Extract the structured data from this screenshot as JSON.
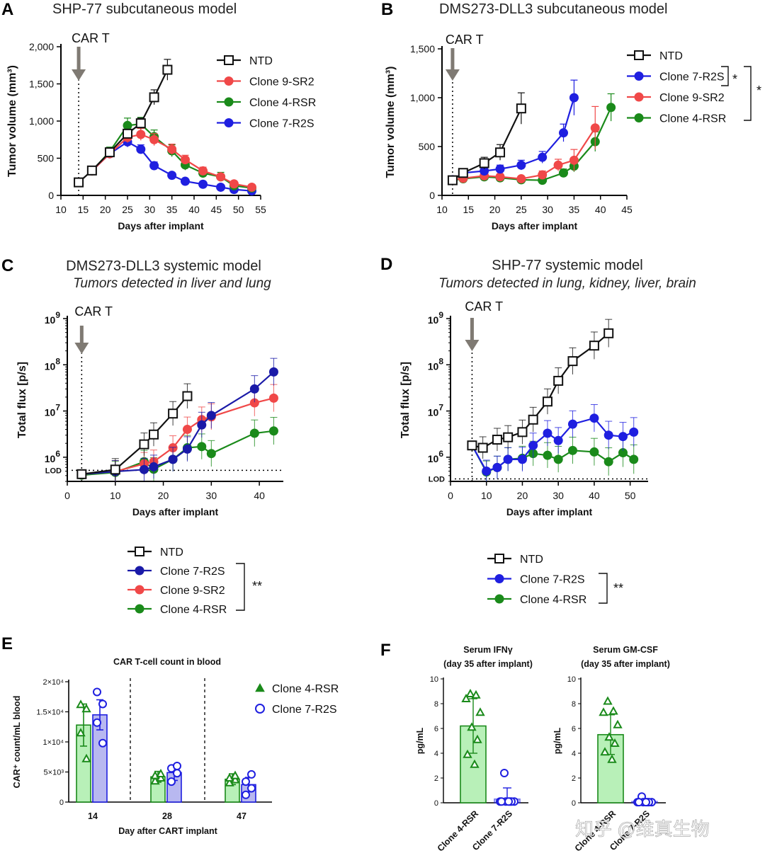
{
  "panel_labels": [
    "A",
    "B",
    "C",
    "D",
    "E",
    "F"
  ],
  "car_t_label": "CAR T",
  "watermark": "知乎 @维真生物",
  "colors": {
    "NTD": "#111111",
    "Clone 9-SR2": "#f04848",
    "Clone 4-RSR": "#1a8a1a",
    "Clone 7-R2S": "#1f1fe0",
    "Clone 7-R2S dark": "#1a1aa8",
    "arrow": "#7f7a73",
    "bar_green_fill": "#b8f0b8",
    "bar_blue_fill": "#b8b8f0"
  },
  "chart_data": [
    {
      "id": "A",
      "type": "line",
      "title": "SHP-77 subcutaneous model",
      "xlabel": "Days after implant",
      "ylabel": "Tumor volume (mm³)",
      "xlim": [
        10,
        55
      ],
      "ylim": [
        0,
        2000
      ],
      "xticks": [
        "10",
        "15",
        "20",
        "25",
        "30",
        "35",
        "40",
        "45",
        "50",
        "55"
      ],
      "yticks": [
        "0",
        "500",
        "1,000",
        "1,500",
        "2,000"
      ],
      "car_t_day": 14,
      "series": [
        {
          "name": "NTD",
          "marker": "square-open",
          "x": [
            14,
            17,
            21,
            25,
            28,
            31,
            34
          ],
          "y": [
            175,
            335,
            580,
            830,
            970,
            1320,
            1690
          ],
          "err": [
            30,
            30,
            50,
            60,
            70,
            100,
            140
          ]
        },
        {
          "name": "Clone 9-SR2",
          "marker": "circle",
          "x": [
            17,
            21,
            25,
            28,
            31,
            35,
            38,
            42,
            46,
            49,
            53
          ],
          "y": [
            330,
            560,
            780,
            820,
            750,
            620,
            480,
            330,
            250,
            155,
            110
          ],
          "err": [
            30,
            50,
            70,
            80,
            80,
            70,
            60,
            50,
            40,
            30,
            25
          ]
        },
        {
          "name": "Clone 4-RSR",
          "marker": "circle",
          "x": [
            17,
            21,
            25,
            28,
            31,
            35,
            38,
            42,
            46,
            49,
            53
          ],
          "y": [
            330,
            590,
            940,
            960,
            790,
            600,
            410,
            300,
            250,
            130,
            100
          ],
          "err": [
            30,
            60,
            100,
            90,
            90,
            80,
            70,
            50,
            60,
            40,
            25
          ]
        },
        {
          "name": "Clone 7-R2S",
          "marker": "circle",
          "x": [
            17,
            21,
            25,
            28,
            31,
            35,
            38,
            42,
            46,
            49,
            53
          ],
          "y": [
            330,
            560,
            720,
            620,
            400,
            270,
            190,
            150,
            110,
            80,
            60
          ],
          "err": [
            30,
            50,
            70,
            60,
            50,
            30,
            25,
            20,
            15,
            12,
            10
          ]
        }
      ]
    },
    {
      "id": "B",
      "type": "line",
      "title": "DMS273-DLL3 subcutaneous model",
      "xlabel": "Days after implant",
      "ylabel": "Tumor volume (mm³)",
      "xlim": [
        10,
        45
      ],
      "ylim": [
        0,
        1500
      ],
      "xticks": [
        "10",
        "15",
        "20",
        "25",
        "30",
        "35",
        "40",
        "45"
      ],
      "yticks": [
        "0",
        "500",
        "1,000",
        "1,500"
      ],
      "car_t_day": 12,
      "significance": [
        "*",
        "*"
      ],
      "series": [
        {
          "name": "NTD",
          "marker": "square-open",
          "x": [
            12,
            14,
            18,
            21,
            25
          ],
          "y": [
            155,
            230,
            330,
            440,
            890
          ],
          "err": [
            20,
            30,
            60,
            80,
            160
          ]
        },
        {
          "name": "Clone 7-R2S",
          "marker": "circle",
          "x": [
            12,
            14,
            18,
            21,
            25,
            29,
            33,
            35
          ],
          "y": [
            160,
            230,
            250,
            270,
            310,
            390,
            640,
            1000
          ],
          "err": [
            20,
            30,
            40,
            40,
            50,
            60,
            90,
            180
          ]
        },
        {
          "name": "Clone 9-SR2",
          "marker": "circle",
          "x": [
            12,
            14,
            18,
            21,
            25,
            29,
            32,
            35,
            39
          ],
          "y": [
            160,
            175,
            200,
            190,
            170,
            210,
            310,
            360,
            690
          ],
          "err": [
            20,
            25,
            30,
            30,
            25,
            40,
            60,
            110,
            220
          ]
        },
        {
          "name": "Clone 4-RSR",
          "marker": "circle",
          "x": [
            12,
            14,
            18,
            21,
            25,
            29,
            33,
            35,
            39,
            42
          ],
          "y": [
            155,
            170,
            190,
            180,
            160,
            155,
            230,
            300,
            550,
            900
          ],
          "err": [
            20,
            20,
            25,
            25,
            20,
            20,
            40,
            60,
            100,
            140
          ]
        }
      ]
    },
    {
      "id": "C",
      "type": "line",
      "title": "DMS273-DLL3 systemic model",
      "subtitle": "Tumors detected in liver and lung",
      "xlabel": "Days after implant",
      "ylabel": "Total flux [p/s]",
      "y_scale": "log",
      "xlim": [
        0,
        45
      ],
      "ylim": [
        300000,
        1000000000
      ],
      "xticks": [
        "0",
        "10",
        "20",
        "30",
        "40"
      ],
      "yticks": [
        "10⁶",
        "10⁷",
        "10⁸",
        "10⁹"
      ],
      "lod_label": "LOD",
      "lod_value": 520000,
      "car_t_day": 3,
      "significance": "**",
      "series": [
        {
          "name": "NTD",
          "marker": "square-open",
          "x": [
            3,
            10,
            16,
            18,
            22,
            25
          ],
          "y": [
            430000,
            540000,
            1900000,
            3100000,
            8800000,
            21000000
          ]
        },
        {
          "name": "Clone 7-R2S",
          "marker": "circle",
          "x": [
            3,
            10,
            16,
            18,
            22,
            25,
            28,
            30,
            39,
            43
          ],
          "y": [
            430000,
            490000,
            540000,
            620000,
            900000,
            1500000,
            5000000,
            8000000,
            30000000,
            70000000
          ]
        },
        {
          "name": "Clone 9-SR2",
          "marker": "circle",
          "x": [
            3,
            10,
            16,
            18,
            22,
            25,
            28,
            30,
            39,
            43
          ],
          "y": [
            430000,
            490000,
            720000,
            800000,
            1600000,
            4000000,
            6500000,
            7500000,
            15000000,
            19000000
          ]
        },
        {
          "name": "Clone 4-RSR",
          "marker": "circle",
          "x": [
            3,
            10,
            16,
            18,
            22,
            25,
            28,
            30,
            39,
            43
          ],
          "y": [
            410000,
            470000,
            800000,
            550000,
            900000,
            1600000,
            1700000,
            1200000,
            3300000,
            3700000
          ]
        }
      ]
    },
    {
      "id": "D",
      "type": "line",
      "title": "SHP-77 systemic model",
      "subtitle": "Tumors detected in lung, kidney, liver, brain",
      "xlabel": "Days after implant",
      "ylabel": "Total flux [p/s]",
      "y_scale": "log",
      "xlim": [
        0,
        55
      ],
      "ylim": [
        300000,
        1000000000
      ],
      "xticks": [
        "0",
        "10",
        "20",
        "30",
        "40",
        "50"
      ],
      "yticks": [
        "10⁶",
        "10⁷",
        "10⁸",
        "10⁹"
      ],
      "lod_label": "LOD",
      "lod_value": 340000,
      "car_t_day": 6,
      "significance": "**",
      "series": [
        {
          "name": "NTD",
          "marker": "square-open",
          "x": [
            6,
            9,
            13,
            16,
            20,
            23,
            27,
            30,
            34,
            40,
            44
          ],
          "y": [
            1800000,
            1600000,
            2400000,
            2700000,
            3500000,
            6500000,
            16000000,
            45000000,
            120000000,
            260000000,
            480000000
          ]
        },
        {
          "name": "Clone 7-R2S",
          "marker": "circle",
          "x": [
            6,
            10,
            13,
            16,
            20,
            23,
            27,
            30,
            34,
            40,
            44,
            48,
            51
          ],
          "y": [
            1800000,
            500000,
            600000,
            900000,
            900000,
            1800000,
            3300000,
            2300000,
            5200000,
            7000000,
            3000000,
            2800000,
            3500000
          ]
        },
        {
          "name": "Clone 4-RSR",
          "marker": "circle",
          "x": [
            6,
            10,
            13,
            16,
            20,
            23,
            27,
            30,
            34,
            40,
            44,
            48,
            51
          ],
          "y": [
            1800000,
            480000,
            600000,
            900000,
            950000,
            1200000,
            1100000,
            900000,
            1400000,
            1300000,
            800000,
            1250000,
            900000
          ]
        }
      ]
    },
    {
      "id": "E",
      "type": "bar",
      "title": "CAR T-cell count in blood",
      "xlabel": "Day after CART implant",
      "ylabel": "CAR⁺ count/mL blood",
      "categories": [
        "14",
        "28",
        "47"
      ],
      "ylim": [
        0,
        20000
      ],
      "yticks": [
        "0",
        "5×10³",
        "1×10⁴",
        "1.5×10⁴",
        "2×10⁴"
      ],
      "series": [
        {
          "name": "Clone 4-RSR",
          "marker": "triangle-open",
          "values": [
            12800,
            4200,
            3800
          ],
          "err": [
            3500,
            900,
            900
          ],
          "points": [
            [
              16200,
              15500,
              11500,
              7200
            ],
            [
              3500,
              4000,
              4400,
              4700
            ],
            [
              3200,
              3700,
              4000,
              4400
            ]
          ]
        },
        {
          "name": "Clone 7-R2S",
          "marker": "circle-open",
          "values": [
            14500,
            4900,
            2900
          ],
          "err": [
            2500,
            1300,
            1200
          ],
          "points": [
            [
              18300,
              16300,
              13200,
              9800
            ],
            [
              3400,
              4800,
              5600,
              6000
            ],
            [
              1200,
              2300,
              3400,
              4600
            ]
          ]
        }
      ]
    },
    {
      "id": "F1",
      "type": "bar",
      "title": "Serum IFNγ",
      "subtitle": "(day 35 after implant)",
      "ylabel": "pg/mL",
      "categories": [
        "Clone 4-RSR",
        "Clone 7-R2S"
      ],
      "ylim": [
        0,
        10
      ],
      "yticks": [
        "0",
        "2",
        "4",
        "6",
        "8",
        "10"
      ],
      "values": [
        6.2,
        0.3
      ],
      "err": [
        2.2,
        0.9
      ],
      "points": [
        [
          8.8,
          8.7,
          8.4,
          7.3,
          6.1,
          5.1,
          3.9,
          3.1
        ],
        [
          2.4,
          0.1,
          0.1,
          0.1,
          0.1,
          0.1,
          0.1,
          0.1
        ]
      ]
    },
    {
      "id": "F2",
      "type": "bar",
      "title": "Serum GM-CSF",
      "subtitle": "(day 35 after implant)",
      "ylabel": "pg/mL",
      "categories": [
        "Clone 4-RSR",
        "Clone 7-R2S"
      ],
      "ylim": [
        0,
        10
      ],
      "yticks": [
        "0",
        "2",
        "4",
        "6",
        "8",
        "10"
      ],
      "values": [
        5.5,
        0.1
      ],
      "err": [
        1.6,
        0.2
      ],
      "points": [
        [
          8.2,
          7.4,
          7.3,
          6.3,
          5.3,
          4.8,
          4.1,
          3.5
        ],
        [
          0.5,
          0.05,
          0.05,
          0.05,
          0.05,
          0.05,
          0.05,
          0.05
        ]
      ]
    }
  ]
}
